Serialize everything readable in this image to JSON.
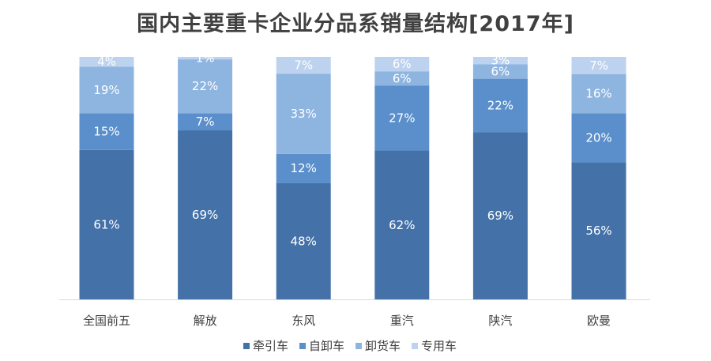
{
  "chart_data": {
    "type": "bar",
    "stacked": true,
    "normalized": true,
    "title": "国内主要重卡企业分品系销量结构[2017年]",
    "xlabel": "",
    "ylabel": "",
    "ylim": [
      0,
      100
    ],
    "grid": false,
    "legend_position": "bottom",
    "categories": [
      "全国前五",
      "解放",
      "东风",
      "重汽",
      "陕汽",
      "欧曼"
    ],
    "series": [
      {
        "name": "牵引车",
        "color": "#4472a8",
        "values": [
          61,
          69,
          48,
          62,
          69,
          56
        ]
      },
      {
        "name": "自卸车",
        "color": "#5a8fcb",
        "values": [
          15,
          7,
          12,
          27,
          22,
          20
        ]
      },
      {
        "name": "卸货车",
        "color": "#8eb4e0",
        "values": [
          19,
          22,
          33,
          6,
          6,
          16
        ]
      },
      {
        "name": "专用车",
        "color": "#bdd2ee",
        "values": [
          4,
          1,
          7,
          6,
          3,
          7
        ]
      }
    ],
    "labels": [
      [
        "61%",
        "15%",
        "19%",
        "4%"
      ],
      [
        "69%",
        "7%",
        "22%",
        "1%"
      ],
      [
        "48%",
        "12%",
        "33%",
        "7%"
      ],
      [
        "62%",
        "27%",
        "6%",
        "6%"
      ],
      [
        "69%",
        "22%",
        "6%",
        "3%"
      ],
      [
        "56%",
        "20%",
        "16%",
        "7%"
      ]
    ]
  }
}
